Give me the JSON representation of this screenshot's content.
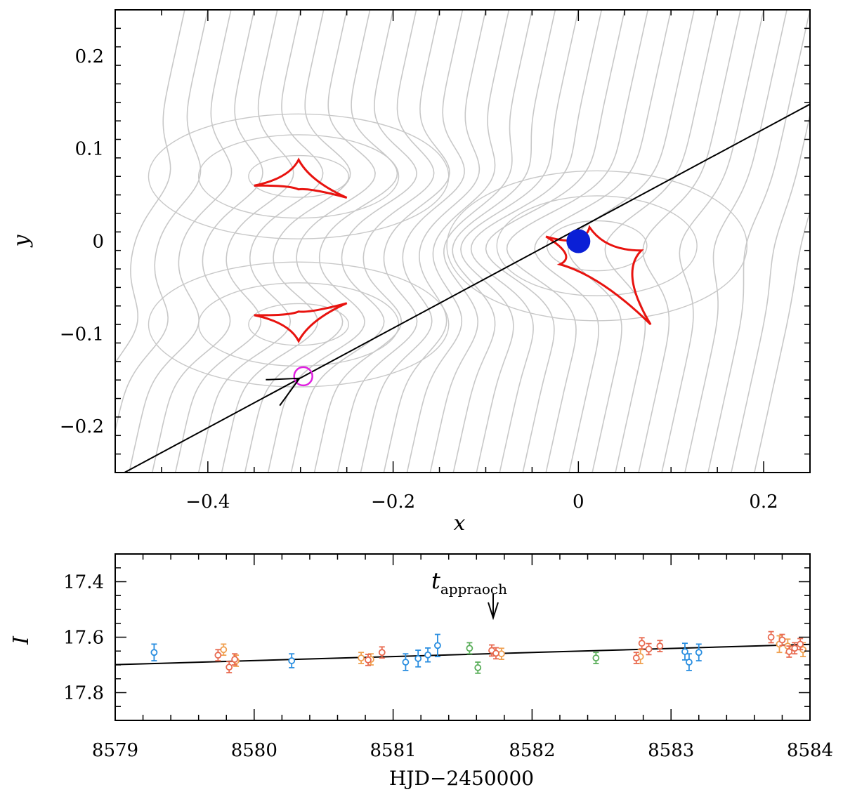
{
  "colors": {
    "contour": "#c8c8c8",
    "caustic": "#e8130f",
    "trajectory": "#000000",
    "lens": "#0a1fd6",
    "source": "#e020e0",
    "obs_blue": "#2a8ee0",
    "obs_orange": "#f0a050",
    "obs_red": "#e86a50",
    "obs_green": "#5aae5a"
  },
  "chart_data": [
    {
      "type": "scatter",
      "title": "",
      "xlabel": "x",
      "ylabel": "y",
      "xlim": [
        -0.5,
        0.25
      ],
      "ylim": [
        -0.25,
        0.25
      ],
      "x_ticks": [
        -0.4,
        -0.2,
        0,
        0.2
      ],
      "x_tick_labels": [
        "−0.4",
        "−0.2",
        "0",
        "0.2"
      ],
      "y_ticks": [
        -0.2,
        -0.1,
        0,
        0.1,
        0.2
      ],
      "y_tick_labels": [
        "−0.2",
        "−0.1",
        "0",
        "0.1",
        "0.2"
      ],
      "caustics": [
        {
          "name": "upper planetary caustic",
          "cusps": [
            [
              -0.35,
              0.06
            ],
            [
              -0.302,
              0.088
            ],
            [
              -0.25,
              0.047
            ],
            [
              -0.302,
              0.056
            ]
          ]
        },
        {
          "name": "lower planetary caustic",
          "cusps": [
            [
              -0.35,
              -0.08
            ],
            [
              -0.302,
              -0.108
            ],
            [
              -0.25,
              -0.067
            ],
            [
              -0.302,
              -0.076
            ]
          ]
        },
        {
          "name": "central caustic",
          "cusps": [
            [
              -0.035,
              0.005
            ],
            [
              0.012,
              0.015
            ],
            [
              0.068,
              -0.01
            ],
            [
              0.078,
              -0.09
            ],
            [
              -0.02,
              -0.025
            ]
          ]
        }
      ],
      "trajectory": {
        "start": [
          -0.49,
          -0.25
        ],
        "end": [
          0.25,
          0.148
        ]
      },
      "source_position": [
        -0.297,
        -0.146
      ],
      "lens_position": [
        0.0,
        0.0
      ]
    },
    {
      "type": "scatter",
      "title": "",
      "xlabel": "HJD−2450000",
      "ylabel": "I",
      "xlim": [
        8579,
        8584
      ],
      "ylim": [
        17.9,
        17.3
      ],
      "x_ticks": [
        8579,
        8580,
        8581,
        8582,
        8583,
        8584
      ],
      "x_tick_labels": [
        "8579",
        "8580",
        "8581",
        "8582",
        "8583",
        "8584"
      ],
      "y_ticks": [
        17.4,
        17.6,
        17.8
      ],
      "y_tick_labels": [
        "17.4",
        "17.6",
        "17.8"
      ],
      "annotation": {
        "text": "t",
        "subscript": "appraoch",
        "x": 8581.72
      },
      "model_line": {
        "x": [
          8579,
          8584
        ],
        "y": [
          17.699,
          17.626
        ]
      },
      "series": [
        {
          "name": "blue",
          "color_key": "obs_blue",
          "x": [
            8579.28,
            8580.27,
            8581.09,
            8581.18,
            8581.25,
            8581.32,
            8583.1,
            8583.13,
            8583.2
          ],
          "y": [
            17.655,
            17.685,
            17.69,
            17.677,
            17.664,
            17.63,
            17.652,
            17.69,
            17.655
          ],
          "err": [
            0.03,
            0.025,
            0.03,
            0.03,
            0.025,
            0.04,
            0.03,
            0.03,
            0.03
          ]
        },
        {
          "name": "orange",
          "color_key": "obs_orange",
          "x": [
            8579.78,
            8579.87,
            8580.77,
            8580.84,
            8581.78,
            8582.78,
            8583.78,
            8583.84,
            8583.95
          ],
          "y": [
            17.645,
            17.685,
            17.675,
            17.68,
            17.66,
            17.67,
            17.625,
            17.632,
            17.645
          ],
          "err": [
            0.02,
            0.02,
            0.02,
            0.02,
            0.02,
            0.025,
            0.03,
            0.025,
            0.025
          ]
        },
        {
          "name": "red",
          "color_key": "obs_red",
          "x": [
            8579.74,
            8579.82,
            8579.86,
            8580.82,
            8580.92,
            8581.71,
            8581.74,
            8582.75,
            8582.79,
            8582.84,
            8582.92,
            8583.72,
            8583.8,
            8583.85,
            8583.89,
            8583.93
          ],
          "y": [
            17.665,
            17.708,
            17.68,
            17.682,
            17.655,
            17.648,
            17.658,
            17.675,
            17.622,
            17.643,
            17.632,
            17.6,
            17.61,
            17.652,
            17.64,
            17.625
          ],
          "err": [
            0.02,
            0.02,
            0.02,
            0.02,
            0.02,
            0.02,
            0.02,
            0.02,
            0.02,
            0.02,
            0.02,
            0.02,
            0.02,
            0.02,
            0.02,
            0.02
          ]
        },
        {
          "name": "green",
          "color_key": "obs_green",
          "x": [
            8581.55,
            8581.61,
            8582.46
          ],
          "y": [
            17.64,
            17.71,
            17.675
          ],
          "err": [
            0.02,
            0.02,
            0.02
          ]
        }
      ]
    }
  ]
}
